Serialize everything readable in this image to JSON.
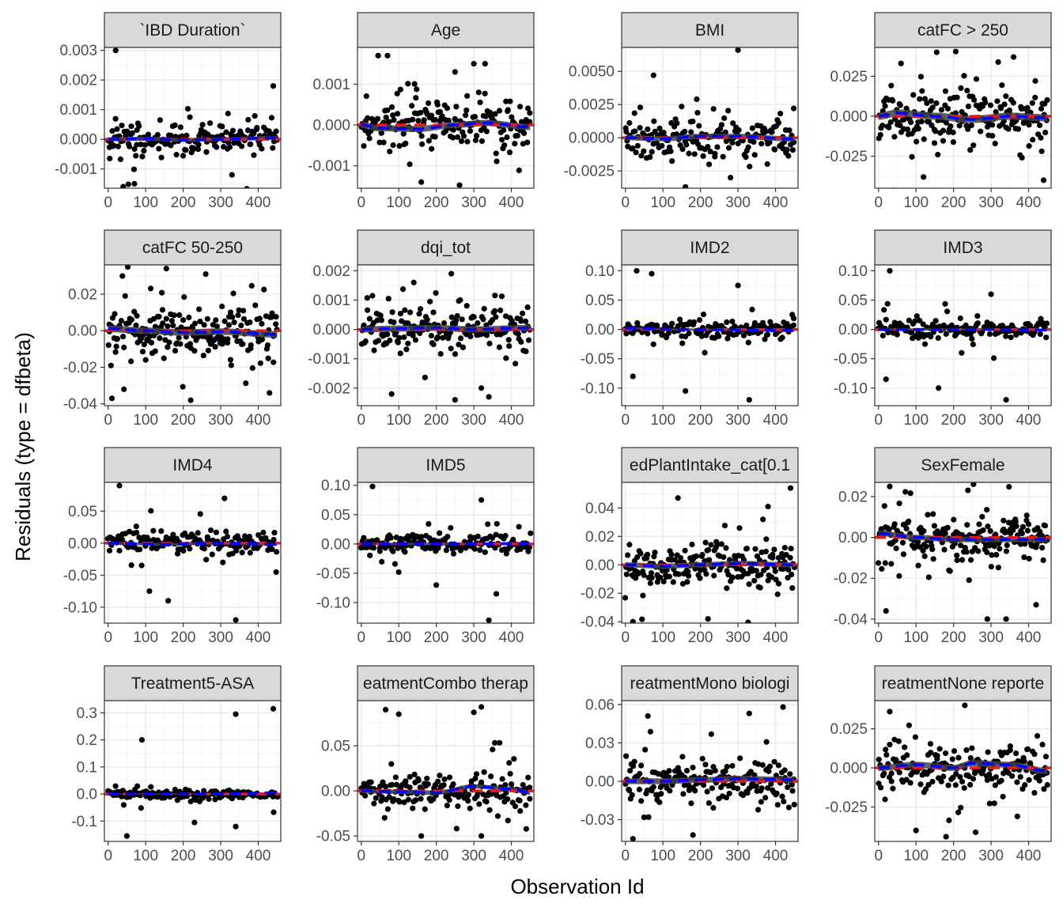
{
  "figure": {
    "xlabel": "Observation Id",
    "ylabel": "Residuals (type = dfbeta)",
    "colors": {
      "strip_fill": "#d9d9d9",
      "strip_border": "#333333",
      "panel_border": "#333333",
      "grid_major": "#ebebeb",
      "grid_minor": "#f5f5f5",
      "points": "#000000",
      "zero_line": "#e41a1c",
      "smooth_line": "#0000ff",
      "smooth_band": "#444444"
    }
  },
  "chart_data": [
    {
      "type": "scatter",
      "title": "`IBD Duration`",
      "xlim": [
        -10,
        460
      ],
      "ylim": [
        -0.00165,
        0.0031
      ],
      "xticks": [
        0,
        100,
        200,
        300,
        400
      ],
      "xtick_labels": [
        "0",
        "100",
        "200",
        "300",
        "400"
      ],
      "yticks": [
        -0.001,
        0,
        0.001,
        0.002,
        0.003
      ],
      "ytick_labels": [
        "-0.001",
        "0.000",
        "0.001",
        "0.002",
        "0.003"
      ],
      "spread": 0.00045,
      "n_points": 180,
      "outliers": [
        [
          20,
          0.003
        ],
        [
          440,
          0.0018
        ],
        [
          40,
          -0.0016
        ],
        [
          70,
          -0.0015
        ],
        [
          330,
          -0.0012
        ]
      ],
      "smooth": [
        [
          0,
          0.0
        ],
        [
          100,
          2e-05
        ],
        [
          200,
          -2e-05
        ],
        [
          300,
          0.0
        ],
        [
          450,
          5e-05
        ]
      ]
    },
    {
      "type": "scatter",
      "title": "Age",
      "xlim": [
        -10,
        460
      ],
      "ylim": [
        -0.00155,
        0.0019
      ],
      "xticks": [
        0,
        100,
        200,
        300,
        400
      ],
      "xtick_labels": [
        "0",
        "100",
        "200",
        "300",
        "400"
      ],
      "yticks": [
        -0.001,
        0,
        0.001
      ],
      "ytick_labels": [
        "-0.001",
        "0.000",
        "0.001"
      ],
      "spread": 0.0005,
      "n_points": 180,
      "outliers": [
        [
          45,
          0.0017
        ],
        [
          70,
          0.0017
        ],
        [
          300,
          0.0015
        ],
        [
          330,
          0.0015
        ],
        [
          160,
          -0.0014
        ],
        [
          250,
          0.0013
        ]
      ],
      "smooth": [
        [
          0,
          0.0
        ],
        [
          50,
          -8e-05
        ],
        [
          150,
          -0.0001
        ],
        [
          250,
          0.0
        ],
        [
          330,
          5e-05
        ],
        [
          450,
          -5e-05
        ]
      ]
    },
    {
      "type": "scatter",
      "title": "BMI",
      "xlim": [
        -10,
        460
      ],
      "ylim": [
        -0.0038,
        0.0068
      ],
      "xticks": [
        0,
        100,
        200,
        300,
        400
      ],
      "xtick_labels": [
        "0",
        "100",
        "200",
        "300",
        "400"
      ],
      "yticks": [
        -0.0025,
        0,
        0.0025,
        0.005
      ],
      "ytick_labels": [
        "-0.0025",
        "0.0000",
        "0.0025",
        "0.0050"
      ],
      "spread": 0.0013,
      "n_points": 170,
      "outliers": [
        [
          300,
          0.0066
        ],
        [
          75,
          0.0047
        ],
        [
          160,
          -0.0037
        ],
        [
          190,
          0.0029
        ],
        [
          280,
          -0.003
        ]
      ],
      "smooth": [
        [
          0,
          0.0
        ],
        [
          100,
          -8e-05
        ],
        [
          200,
          0.0001
        ],
        [
          300,
          0.0001
        ],
        [
          450,
          -0.0001
        ]
      ]
    },
    {
      "type": "scatter",
      "title": "catFC > 250",
      "xlim": [
        -10,
        460
      ],
      "ylim": [
        -0.045,
        0.043
      ],
      "xticks": [
        0,
        100,
        200,
        300,
        400
      ],
      "xtick_labels": [
        "0",
        "100",
        "200",
        "300",
        "400"
      ],
      "yticks": [
        -0.025,
        0,
        0.025
      ],
      "ytick_labels": [
        "-0.025",
        "0.000",
        "0.025"
      ],
      "spread": 0.015,
      "n_points": 190,
      "outliers": [
        [
          155,
          0.04
        ],
        [
          360,
          0.037
        ],
        [
          120,
          -0.038
        ],
        [
          440,
          -0.04
        ],
        [
          60,
          0.033
        ]
      ],
      "smooth": [
        [
          0,
          0.0
        ],
        [
          50,
          0.002
        ],
        [
          150,
          0.0
        ],
        [
          250,
          -0.002
        ],
        [
          350,
          0.0
        ],
        [
          450,
          -0.001
        ]
      ]
    },
    {
      "type": "scatter",
      "title": "catFC 50-250",
      "xlim": [
        -10,
        460
      ],
      "ylim": [
        -0.041,
        0.036
      ],
      "xticks": [
        0,
        100,
        200,
        300,
        400
      ],
      "xtick_labels": [
        "0",
        "100",
        "200",
        "300",
        "400"
      ],
      "yticks": [
        -0.04,
        -0.02,
        0,
        0.02
      ],
      "ytick_labels": [
        "-0.04",
        "-0.02",
        "0.00",
        "0.02"
      ],
      "spread": 0.012,
      "n_points": 210,
      "outliers": [
        [
          155,
          0.034
        ],
        [
          260,
          0.031
        ],
        [
          220,
          -0.038
        ],
        [
          430,
          -0.034
        ],
        [
          10,
          -0.037
        ]
      ],
      "smooth": [
        [
          0,
          0.001
        ],
        [
          100,
          0.0
        ],
        [
          200,
          -0.001
        ],
        [
          300,
          -0.0005
        ],
        [
          450,
          -0.002
        ]
      ]
    },
    {
      "type": "scatter",
      "title": "dqi_tot",
      "xlim": [
        -10,
        460
      ],
      "ylim": [
        -0.0026,
        0.0022
      ],
      "xticks": [
        0,
        100,
        200,
        300,
        400
      ],
      "xtick_labels": [
        "0",
        "100",
        "200",
        "300",
        "400"
      ],
      "yticks": [
        -0.002,
        -0.001,
        0,
        0.001,
        0.002
      ],
      "ytick_labels": [
        "-0.002",
        "-0.001",
        "0.000",
        "0.001",
        "0.002"
      ],
      "spread": 0.0007,
      "n_points": 180,
      "outliers": [
        [
          240,
          0.0019
        ],
        [
          140,
          0.0016
        ],
        [
          250,
          -0.0024
        ],
        [
          340,
          -0.0023
        ],
        [
          320,
          -0.002
        ]
      ],
      "smooth": [
        [
          0,
          0.0
        ],
        [
          100,
          3e-05
        ],
        [
          200,
          5e-05
        ],
        [
          300,
          0.0
        ],
        [
          450,
          5e-05
        ]
      ]
    },
    {
      "type": "scatter",
      "title": "IMD2",
      "xlim": [
        -10,
        460
      ],
      "ylim": [
        -0.13,
        0.11
      ],
      "xticks": [
        0,
        100,
        200,
        300,
        400
      ],
      "xtick_labels": [
        "0",
        "100",
        "200",
        "300",
        "400"
      ],
      "yticks": [
        -0.1,
        -0.05,
        0,
        0.05,
        0.1
      ],
      "ytick_labels": [
        "-0.10",
        "-0.05",
        "0.00",
        "0.05",
        "0.10"
      ],
      "spread": 0.012,
      "n_points": 160,
      "outliers": [
        [
          30,
          0.1
        ],
        [
          70,
          0.095
        ],
        [
          330,
          -0.12
        ],
        [
          160,
          -0.105
        ],
        [
          300,
          0.075
        ],
        [
          20,
          -0.08
        ]
      ],
      "smooth": [
        [
          0,
          0.002
        ],
        [
          150,
          0.0
        ],
        [
          300,
          -0.001
        ],
        [
          450,
          -0.002
        ]
      ]
    },
    {
      "type": "scatter",
      "title": "IMD3",
      "xlim": [
        -10,
        460
      ],
      "ylim": [
        -0.13,
        0.11
      ],
      "xticks": [
        0,
        100,
        200,
        300,
        400
      ],
      "xtick_labels": [
        "0",
        "100",
        "200",
        "300",
        "400"
      ],
      "yticks": [
        -0.1,
        -0.05,
        0,
        0.05,
        0.1
      ],
      "ytick_labels": [
        "-0.10",
        "-0.05",
        "0.00",
        "0.05",
        "0.10"
      ],
      "spread": 0.012,
      "n_points": 160,
      "outliers": [
        [
          30,
          0.1
        ],
        [
          340,
          -0.12
        ],
        [
          160,
          -0.1
        ],
        [
          20,
          -0.085
        ],
        [
          300,
          0.06
        ]
      ],
      "smooth": [
        [
          0,
          0.0
        ],
        [
          150,
          0.0
        ],
        [
          300,
          0.0
        ],
        [
          450,
          -0.001
        ]
      ]
    },
    {
      "type": "scatter",
      "title": "IMD4",
      "xlim": [
        -10,
        460
      ],
      "ylim": [
        -0.125,
        0.095
      ],
      "xticks": [
        0,
        100,
        200,
        300,
        400
      ],
      "xtick_labels": [
        "0",
        "100",
        "200",
        "300",
        "400"
      ],
      "yticks": [
        -0.1,
        -0.05,
        0,
        0.05
      ],
      "ytick_labels": [
        "-0.10",
        "-0.05",
        "0.00",
        "0.05"
      ],
      "spread": 0.015,
      "n_points": 160,
      "outliers": [
        [
          30,
          0.09
        ],
        [
          340,
          -0.12
        ],
        [
          310,
          0.07
        ],
        [
          160,
          -0.09
        ],
        [
          110,
          -0.075
        ]
      ],
      "smooth": [
        [
          0,
          0.0
        ],
        [
          150,
          -0.002
        ],
        [
          300,
          0.0
        ],
        [
          450,
          -0.002
        ]
      ]
    },
    {
      "type": "scatter",
      "title": "IMD5",
      "xlim": [
        -10,
        460
      ],
      "ylim": [
        -0.135,
        0.105
      ],
      "xticks": [
        0,
        100,
        200,
        300,
        400
      ],
      "xtick_labels": [
        "0",
        "100",
        "200",
        "300",
        "400"
      ],
      "yticks": [
        -0.1,
        -0.05,
        0,
        0.05,
        0.1
      ],
      "ytick_labels": [
        "-0.10",
        "-0.05",
        "0.00",
        "0.05",
        "0.10"
      ],
      "spread": 0.015,
      "n_points": 160,
      "outliers": [
        [
          30,
          0.098
        ],
        [
          340,
          -0.13
        ],
        [
          320,
          0.075
        ],
        [
          360,
          -0.085
        ],
        [
          200,
          -0.07
        ]
      ],
      "smooth": [
        [
          0,
          0.0
        ],
        [
          150,
          0.0
        ],
        [
          300,
          0.0
        ],
        [
          450,
          0.001
        ]
      ]
    },
    {
      "type": "scatter",
      "title": "edPlantIntake_cat[0.1",
      "xlim": [
        -10,
        460
      ],
      "ylim": [
        -0.041,
        0.058
      ],
      "xticks": [
        0,
        100,
        200,
        300,
        400
      ],
      "xtick_labels": [
        "0",
        "100",
        "200",
        "300",
        "400"
      ],
      "yticks": [
        -0.04,
        -0.02,
        0,
        0.02,
        0.04
      ],
      "ytick_labels": [
        "-0.04",
        "-0.02",
        "0.00",
        "0.02",
        "0.04"
      ],
      "spread": 0.012,
      "n_points": 190,
      "outliers": [
        [
          440,
          0.054
        ],
        [
          140,
          0.047
        ],
        [
          220,
          -0.038
        ],
        [
          380,
          0.041
        ],
        [
          20,
          -0.04
        ]
      ],
      "smooth": [
        [
          0,
          0.0
        ],
        [
          100,
          -0.001
        ],
        [
          200,
          0.0
        ],
        [
          300,
          0.001
        ],
        [
          450,
          0.0
        ]
      ]
    },
    {
      "type": "scatter",
      "title": "SexFemale",
      "xlim": [
        -10,
        460
      ],
      "ylim": [
        -0.042,
        0.027
      ],
      "xticks": [
        0,
        100,
        200,
        300,
        400
      ],
      "xtick_labels": [
        "0",
        "100",
        "200",
        "300",
        "400"
      ],
      "yticks": [
        -0.04,
        -0.02,
        0,
        0.02
      ],
      "ytick_labels": [
        "-0.04",
        "-0.02",
        "0.00",
        "0.02"
      ],
      "spread": 0.009,
      "n_points": 200,
      "outliers": [
        [
          30,
          0.025
        ],
        [
          340,
          -0.04
        ],
        [
          290,
          -0.04
        ],
        [
          420,
          -0.033
        ],
        [
          20,
          -0.036
        ]
      ],
      "smooth": [
        [
          0,
          0.002
        ],
        [
          100,
          0.0
        ],
        [
          200,
          -0.001
        ],
        [
          300,
          -0.001
        ],
        [
          450,
          -0.001
        ]
      ]
    },
    {
      "type": "scatter",
      "title": "Treatment5-ASA",
      "xlim": [
        -10,
        460
      ],
      "ylim": [
        -0.175,
        0.345
      ],
      "xticks": [
        0,
        100,
        200,
        300,
        400
      ],
      "xtick_labels": [
        "0",
        "100",
        "200",
        "300",
        "400"
      ],
      "yticks": [
        -0.1,
        0,
        0.1,
        0.2,
        0.3
      ],
      "ytick_labels": [
        "-0.1",
        "0.0",
        "0.1",
        "0.2",
        "0.3"
      ],
      "spread": 0.015,
      "n_points": 150,
      "outliers": [
        [
          440,
          0.315
        ],
        [
          340,
          0.295
        ],
        [
          90,
          0.2
        ],
        [
          50,
          -0.155
        ],
        [
          340,
          -0.12
        ],
        [
          230,
          -0.105
        ]
      ],
      "smooth": [
        [
          0,
          0.0
        ],
        [
          150,
          0.0
        ],
        [
          300,
          0.0
        ],
        [
          450,
          0.005
        ]
      ]
    },
    {
      "type": "scatter",
      "title": "eatmentCombo therap",
      "xlim": [
        -10,
        460
      ],
      "ylim": [
        -0.056,
        0.1
      ],
      "xticks": [
        0,
        100,
        200,
        300,
        400
      ],
      "xtick_labels": [
        "0",
        "100",
        "200",
        "300",
        "400"
      ],
      "yticks": [
        -0.05,
        0,
        0.05
      ],
      "ytick_labels": [
        "-0.05",
        "0.00",
        "0.05"
      ],
      "spread": 0.016,
      "n_points": 180,
      "outliers": [
        [
          320,
          0.093
        ],
        [
          65,
          0.09
        ],
        [
          100,
          0.085
        ],
        [
          300,
          0.087
        ],
        [
          320,
          -0.05
        ],
        [
          160,
          -0.05
        ]
      ],
      "smooth": [
        [
          0,
          0.0
        ],
        [
          100,
          -0.001
        ],
        [
          200,
          -0.002
        ],
        [
          300,
          0.005
        ],
        [
          400,
          0.002
        ],
        [
          450,
          -0.002
        ]
      ]
    },
    {
      "type": "scatter",
      "title": "reatmentMono biologi",
      "xlim": [
        -10,
        460
      ],
      "ylim": [
        -0.047,
        0.063
      ],
      "xticks": [
        0,
        100,
        200,
        300,
        400
      ],
      "xtick_labels": [
        "0",
        "100",
        "200",
        "300",
        "400"
      ],
      "yticks": [
        -0.03,
        0,
        0.03,
        0.06
      ],
      "ytick_labels": [
        "-0.03",
        "0.00",
        "0.03",
        "0.06"
      ],
      "spread": 0.015,
      "n_points": 190,
      "outliers": [
        [
          420,
          0.058
        ],
        [
          60,
          0.051
        ],
        [
          180,
          -0.042
        ],
        [
          330,
          0.053
        ],
        [
          20,
          -0.045
        ]
      ],
      "smooth": [
        [
          0,
          0.0
        ],
        [
          100,
          0.0
        ],
        [
          200,
          0.001
        ],
        [
          300,
          0.002
        ],
        [
          450,
          0.001
        ]
      ]
    },
    {
      "type": "scatter",
      "title": "reatmentNone reporte",
      "xlim": [
        -10,
        460
      ],
      "ylim": [
        -0.047,
        0.043
      ],
      "xticks": [
        0,
        100,
        200,
        300,
        400
      ],
      "xtick_labels": [
        "0",
        "100",
        "200",
        "300",
        "400"
      ],
      "yticks": [
        -0.025,
        0,
        0.025
      ],
      "ytick_labels": [
        "-0.025",
        "0.000",
        "0.025"
      ],
      "spread": 0.013,
      "n_points": 190,
      "outliers": [
        [
          230,
          0.04
        ],
        [
          180,
          -0.044
        ],
        [
          100,
          -0.04
        ],
        [
          30,
          0.036
        ],
        [
          370,
          -0.031
        ]
      ],
      "smooth": [
        [
          0,
          0.0
        ],
        [
          100,
          0.002
        ],
        [
          200,
          0.0
        ],
        [
          250,
          0.003
        ],
        [
          350,
          0.002
        ],
        [
          450,
          -0.002
        ]
      ]
    }
  ]
}
